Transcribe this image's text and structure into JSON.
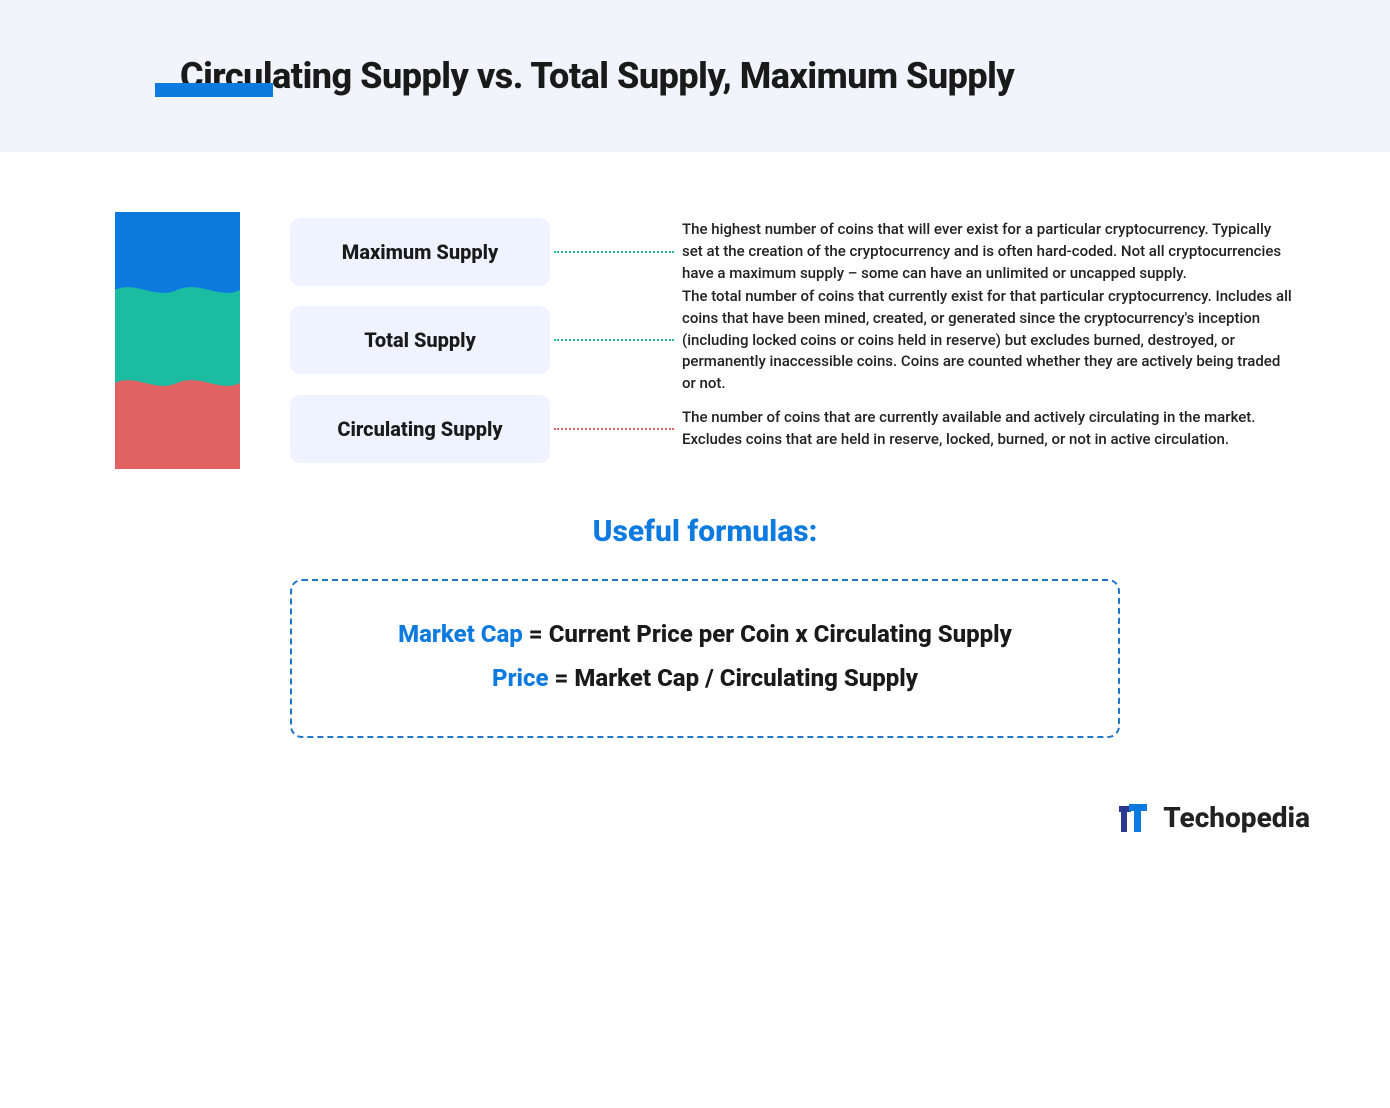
{
  "colors": {
    "accent_blue": "#0d7ae0",
    "header_bg": "#f1f4fb",
    "pill_bg": "#eef3ff",
    "text": "#1a1a1a",
    "formula_border": "#2177c7"
  },
  "header": {
    "title": "Circulating Supply vs. Total Supply, Maximum Supply"
  },
  "stack": {
    "segments": [
      {
        "key": "maximum",
        "color": "#0d7ae0",
        "height_pct": 34
      },
      {
        "key": "total",
        "color": "#1cbca2",
        "height_pct": 36
      },
      {
        "key": "circulating",
        "color": "#e06262",
        "height_pct": 30
      }
    ]
  },
  "items": [
    {
      "label": "Maximum Supply",
      "connector_color": "#1cbca2",
      "description": "The highest number of coins that will ever exist for a particular cryptocurrency. Typically set at the creation of the cryptocurrency and is often hard-coded. Not all cryptocurrencies have a maximum supply – some can have an unlimited or uncapped supply."
    },
    {
      "label": "Total Supply",
      "connector_color": "#1cbca2",
      "description": "The total number of coins that currently exist for that particular cryptocurrency. Includes all coins that have been mined, created, or generated since the cryptocurrency's inception (including locked coins or coins held in reserve) but excludes burned, destroyed, or permanently inaccessible coins. Coins are counted whether they are actively being traded or not."
    },
    {
      "label": "Circulating Supply",
      "connector_color": "#e06262",
      "description": "The number of coins that are currently available and actively circulating in the market. Excludes coins that are held in reserve, locked, burned, or not in active circulation."
    }
  ],
  "formulas": {
    "heading": "Useful formulas:",
    "lines": [
      {
        "highlight": "Market Cap",
        "rest": " = Current Price per Coin x Circulating Supply"
      },
      {
        "highlight": "Price",
        "rest": " = Market Cap / Circulating Supply"
      }
    ]
  },
  "brand": {
    "name": "Techopedia",
    "logo_colors": {
      "front": "#0d7ae0",
      "back": "#2a3b8f"
    }
  }
}
